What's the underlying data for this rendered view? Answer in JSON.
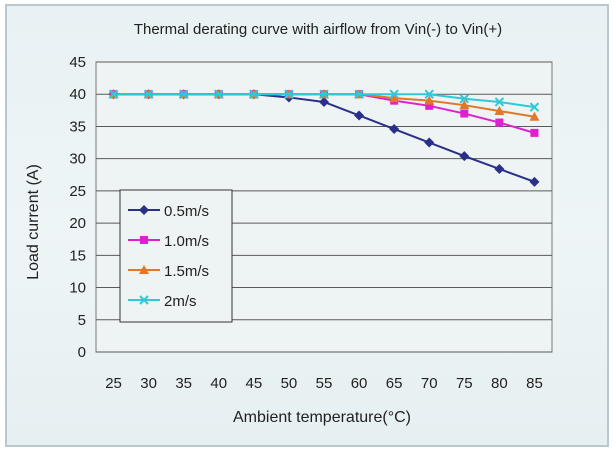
{
  "chart_data": {
    "type": "line",
    "title": "Thermal derating curve with airflow from Vin(-) to Vin(+)",
    "xlabel": "Ambient temperature(°C)",
    "ylabel": "Load current (A)",
    "categories": [
      "25",
      "30",
      "35",
      "40",
      "45",
      "50",
      "55",
      "60",
      "65",
      "70",
      "75",
      "80",
      "85"
    ],
    "ylim": [
      0,
      45
    ],
    "yticks": [
      0,
      5,
      10,
      15,
      20,
      25,
      30,
      35,
      40,
      45
    ],
    "grid": "horizontal",
    "legend_position": "left",
    "series": [
      {
        "name": "0.5m/s",
        "color": "#2a2f8a",
        "marker": "diamond",
        "values": [
          40,
          40,
          40,
          40,
          40,
          39.5,
          38.8,
          36.7,
          34.6,
          32.5,
          30.4,
          28.4,
          26.4
        ]
      },
      {
        "name": "1.0m/s",
        "color": "#e020d0",
        "marker": "square",
        "values": [
          40,
          40,
          40,
          40,
          40,
          40,
          40,
          40,
          39,
          38.2,
          37,
          35.6,
          34
        ]
      },
      {
        "name": "1.5m/s",
        "color": "#e07828",
        "marker": "triangle",
        "values": [
          40,
          40,
          40,
          40,
          40,
          40,
          40,
          40,
          39.4,
          39,
          38.3,
          37.4,
          36.5
        ]
      },
      {
        "name": "2m/s",
        "color": "#30c8d8",
        "marker": "x",
        "values": [
          40,
          40,
          40,
          40,
          40,
          40,
          40,
          40,
          40,
          40,
          39.3,
          38.8,
          38
        ]
      }
    ]
  }
}
